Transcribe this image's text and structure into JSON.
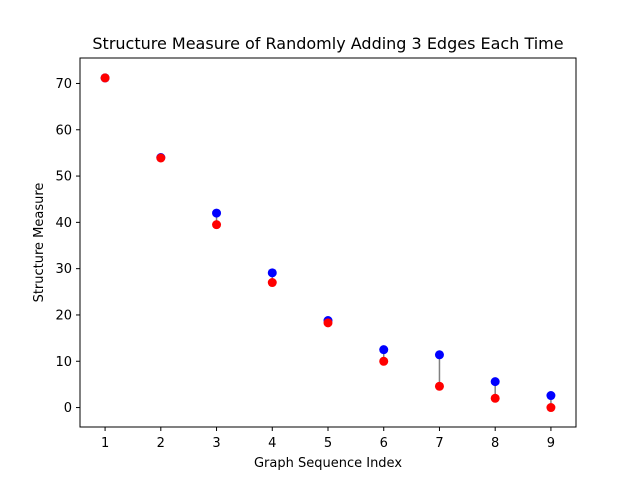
{
  "chart_data": {
    "type": "scatter",
    "title": "Structure Measure of Randomly Adding 3 Edges Each Time",
    "xlabel": "Graph Sequence Index",
    "ylabel": "Structure Measure",
    "xlim": [
      0.55,
      9.45
    ],
    "ylim": [
      -4.2,
      75.5
    ],
    "xticks": [
      1,
      2,
      3,
      4,
      5,
      6,
      7,
      8,
      9
    ],
    "yticks": [
      0,
      10,
      20,
      30,
      40,
      50,
      60,
      70
    ],
    "grid": false,
    "x": [
      1,
      2,
      3,
      4,
      5,
      6,
      7,
      8,
      9
    ],
    "series": [
      {
        "color": "#0000ff",
        "values": [
          71.2,
          54.0,
          42.0,
          29.1,
          18.8,
          12.5,
          11.4,
          5.6,
          2.6
        ]
      },
      {
        "color": "#ff0000",
        "values": [
          71.2,
          53.9,
          39.5,
          27.0,
          18.3,
          10.0,
          4.6,
          2.0,
          0.0
        ]
      }
    ],
    "connector_color": "#808080"
  }
}
